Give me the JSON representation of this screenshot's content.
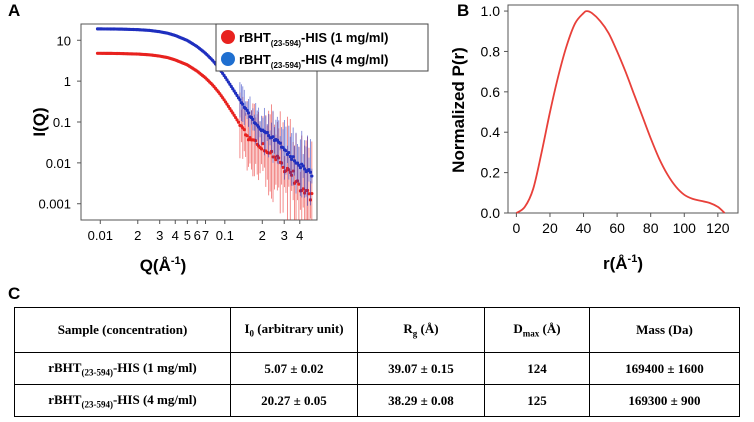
{
  "panels": {
    "a": "A",
    "b": "B",
    "c": "C"
  },
  "chart_data": [
    {
      "id": "A",
      "type": "scatter",
      "xscale": "log",
      "yscale": "log",
      "xlabel_main": "Q(Å",
      "xlabel_sup": "-1",
      "xlabel_close": ")",
      "ylabel": "I(Q)",
      "xlim": [
        0.007,
        0.55
      ],
      "ylim": [
        0.0004,
        25
      ],
      "x_ticks": [
        {
          "value": 0.01,
          "label": "0.01"
        },
        {
          "value": 0.02,
          "label": "2"
        },
        {
          "value": 0.03,
          "label": "3"
        },
        {
          "value": 0.04,
          "label": "4"
        },
        {
          "value": 0.05,
          "label": "5"
        },
        {
          "value": 0.06,
          "label": "6"
        },
        {
          "value": 0.07,
          "label": "7"
        },
        {
          "value": 0.1,
          "label": "0.1"
        },
        {
          "value": 0.2,
          "label": "2"
        },
        {
          "value": 0.3,
          "label": "3"
        },
        {
          "value": 0.4,
          "label": "4"
        }
      ],
      "y_ticks": [
        {
          "value": 10,
          "label": "10"
        },
        {
          "value": 1,
          "label": "1"
        },
        {
          "value": 0.1,
          "label": "0.1"
        },
        {
          "value": 0.01,
          "label": "0.01"
        },
        {
          "value": 0.001,
          "label": "0.001"
        }
      ],
      "legend_position": "top-right",
      "series": [
        {
          "name_main": "rBHT",
          "name_sub": "(23-594)",
          "name_rest": "-HIS (1 mg/ml)",
          "color": "#e8221f",
          "points": [
            [
              0.0095,
              4.8
            ],
            [
              0.012,
              4.78
            ],
            [
              0.015,
              4.72
            ],
            [
              0.02,
              4.6
            ],
            [
              0.025,
              4.4
            ],
            [
              0.03,
              4.1
            ],
            [
              0.035,
              3.75
            ],
            [
              0.04,
              3.3
            ],
            [
              0.05,
              2.5
            ],
            [
              0.06,
              1.75
            ],
            [
              0.07,
              1.2
            ],
            [
              0.08,
              0.8
            ],
            [
              0.09,
              0.52
            ],
            [
              0.1,
              0.33
            ],
            [
              0.12,
              0.14
            ],
            [
              0.14,
              0.065
            ],
            [
              0.16,
              0.038
            ],
            [
              0.18,
              0.028
            ],
            [
              0.2,
              0.025
            ],
            [
              0.22,
              0.021
            ],
            [
              0.25,
              0.015
            ],
            [
              0.3,
              0.008
            ],
            [
              0.35,
              0.005
            ],
            [
              0.4,
              0.003
            ],
            [
              0.45,
              0.0022
            ],
            [
              0.5,
              0.0016
            ]
          ]
        },
        {
          "name_main": "rBHT",
          "name_sub": "(23-594)",
          "name_rest": "-HIS (4 mg/ml)",
          "color": "#1f2fbf",
          "points": [
            [
              0.0095,
              19.0
            ],
            [
              0.012,
              18.9
            ],
            [
              0.015,
              18.7
            ],
            [
              0.02,
              18.2
            ],
            [
              0.025,
              17.4
            ],
            [
              0.03,
              16.2
            ],
            [
              0.035,
              14.8
            ],
            [
              0.04,
              13.1
            ],
            [
              0.05,
              9.9
            ],
            [
              0.06,
              7.0
            ],
            [
              0.07,
              4.8
            ],
            [
              0.08,
              3.2
            ],
            [
              0.09,
              2.05
            ],
            [
              0.1,
              1.3
            ],
            [
              0.12,
              0.55
            ],
            [
              0.14,
              0.26
            ],
            [
              0.16,
              0.14
            ],
            [
              0.18,
              0.085
            ],
            [
              0.2,
              0.06
            ],
            [
              0.22,
              0.05
            ],
            [
              0.25,
              0.038
            ],
            [
              0.3,
              0.022
            ],
            [
              0.35,
              0.013
            ],
            [
              0.4,
              0.009
            ],
            [
              0.45,
              0.007
            ],
            [
              0.5,
              0.0055
            ]
          ]
        }
      ]
    },
    {
      "id": "B",
      "type": "line",
      "xlabel_main": "r(Å",
      "xlabel_sup": "-1",
      "xlabel_close": ")",
      "ylabel": "Normalized P(r)",
      "xlim": [
        -5,
        132
      ],
      "ylim": [
        0,
        1.03
      ],
      "x_ticks": [
        0,
        20,
        40,
        60,
        80,
        100,
        120
      ],
      "y_ticks": [
        0.0,
        0.2,
        0.4,
        0.6,
        0.8,
        1.0
      ],
      "y_tick_labels": [
        "0.0",
        "0.2",
        "0.4",
        "0.6",
        "0.8",
        "1.0"
      ],
      "series": [
        {
          "name": "P(r)",
          "color": "#e8403a",
          "points": [
            [
              0,
              0.0
            ],
            [
              5,
              0.03
            ],
            [
              10,
              0.12
            ],
            [
              15,
              0.3
            ],
            [
              20,
              0.5
            ],
            [
              25,
              0.68
            ],
            [
              30,
              0.83
            ],
            [
              35,
              0.94
            ],
            [
              40,
              0.99
            ],
            [
              42,
              1.0
            ],
            [
              45,
              0.99
            ],
            [
              50,
              0.95
            ],
            [
              55,
              0.89
            ],
            [
              60,
              0.8
            ],
            [
              65,
              0.7
            ],
            [
              70,
              0.59
            ],
            [
              75,
              0.48
            ],
            [
              80,
              0.37
            ],
            [
              85,
              0.27
            ],
            [
              90,
              0.19
            ],
            [
              95,
              0.13
            ],
            [
              100,
              0.09
            ],
            [
              105,
              0.07
            ],
            [
              110,
              0.06
            ],
            [
              115,
              0.05
            ],
            [
              120,
              0.03
            ],
            [
              124,
              0.0
            ]
          ]
        }
      ]
    }
  ],
  "table": {
    "headers": {
      "sample": "Sample  (concentration)",
      "i0_main": "I",
      "i0_sub": "0",
      "i0_rest": " (arbitrary unit)",
      "rg_main": "R",
      "rg_sub": "g",
      "rg_rest": " (Å)",
      "dmax_main": "D",
      "dmax_sub": "max",
      "dmax_rest": " (Å)",
      "mass": "Mass (Da)"
    },
    "rows": [
      {
        "sample_main": "rBHT",
        "sample_sub": "(23-594)",
        "sample_rest": "-HIS (1 mg/ml)",
        "i0": "5.07 ± 0.02",
        "rg": "39.07 ± 0.15",
        "dmax": "124",
        "mass": "169400 ± 1600"
      },
      {
        "sample_main": "rBHT",
        "sample_sub": "(23-594)",
        "sample_rest": "-HIS (4 mg/ml)",
        "i0": "20.27 ± 0.05",
        "rg": "38.29 ± 0.08",
        "dmax": "125",
        "mass": "169300 ± 900"
      }
    ]
  }
}
